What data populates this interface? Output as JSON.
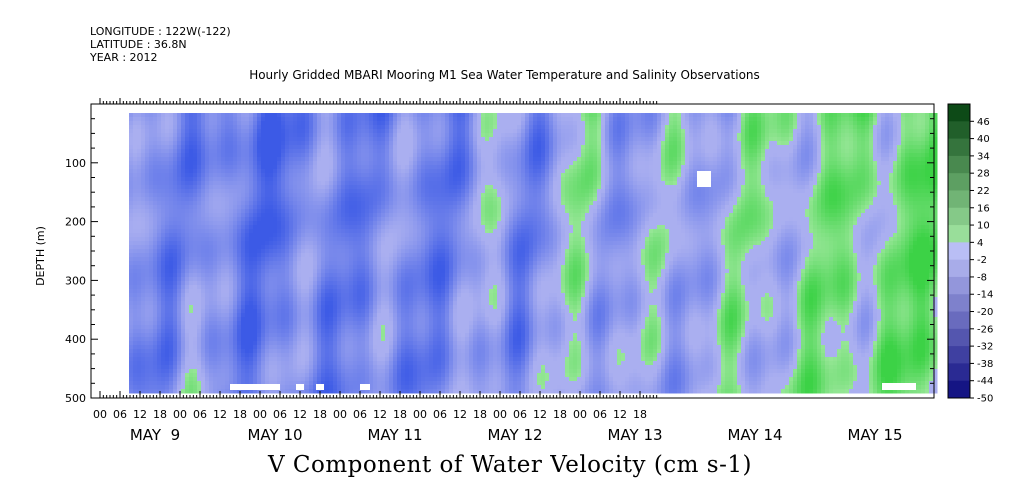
{
  "header": {
    "longitude": "LONGITUDE : 122W(-122)",
    "latitude": "LATITUDE : 36.8N",
    "year": "YEAR : 2012"
  },
  "chart_data": {
    "type": "heatmap",
    "title": "Hourly Gridded MBARI Mooring M1 Sea Water Temperature and Salinity Observations",
    "xlabel": "V Component of Water Velocity (cm s-1)",
    "ylabel": "DEPTH (m)",
    "y_ticks": [
      100,
      200,
      300,
      400,
      500
    ],
    "y_tick_labels": [
      "100",
      "200",
      "300",
      "400",
      "500"
    ],
    "ylim": [
      0,
      500
    ],
    "y_reversed": true,
    "hour_tick_labels": [
      "00",
      "06",
      "12",
      "18",
      "00",
      "06",
      "12",
      "18",
      "00",
      "06",
      "12",
      "18",
      "00",
      "06",
      "12",
      "18",
      "00",
      "06",
      "12",
      "18",
      "00",
      "06",
      "12",
      "18",
      "00",
      "06",
      "12",
      "18"
    ],
    "day_labels": [
      "MAY  9",
      "MAY 10",
      "MAY 11",
      "MAY 12",
      "MAY 13",
      "MAY 14",
      "MAY 15"
    ],
    "colorbar": {
      "labels": [
        "46",
        "40",
        "34",
        "28",
        "22",
        "16",
        "10",
        "4",
        "-2",
        "-8",
        "-14",
        "-20",
        "-26",
        "-32",
        "-38",
        "-44",
        "-50"
      ],
      "min": -50,
      "max": 52,
      "step": 6
    }
  }
}
